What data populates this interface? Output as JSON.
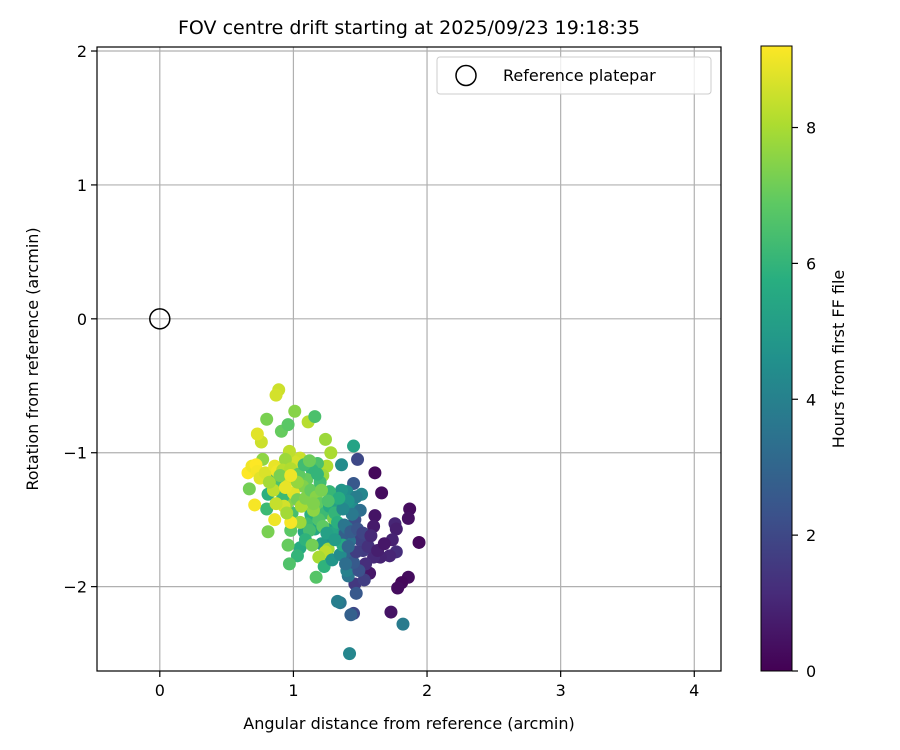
{
  "chart_data": {
    "type": "scatter",
    "title": "FOV centre drift starting at 2025/09/23 19:18:35",
    "xlabel": "Angular distance from reference (arcmin)",
    "ylabel": "Rotation from reference (arcmin)",
    "xlim": [
      -0.47,
      4.2
    ],
    "ylim": [
      -2.63,
      2.03
    ],
    "xticks": [
      0,
      1,
      2,
      3,
      4
    ],
    "yticks": [
      -2,
      -1,
      0,
      1,
      2
    ],
    "xtick_labels": [
      "0",
      "1",
      "2",
      "3",
      "4"
    ],
    "ytick_labels": [
      "−2",
      "−1",
      "0",
      "1",
      "2"
    ],
    "grid": true,
    "legend": {
      "position": "top-right",
      "entries": [
        {
          "label": "Reference platepar",
          "marker": "open-circle"
        }
      ]
    },
    "reference": {
      "x": 0,
      "y": 0
    },
    "colorbar": {
      "label": "Hours from first FF file",
      "range": [
        0,
        9.2
      ],
      "ticks": [
        0,
        2,
        4,
        6,
        8
      ],
      "tick_labels": [
        "0",
        "2",
        "4",
        "6",
        "8"
      ],
      "colormap": "viridis"
    },
    "points": [
      [
        1.94,
        -1.67,
        0.2
      ],
      [
        1.87,
        -1.42,
        0.3
      ],
      [
        1.86,
        -1.49,
        0.4
      ],
      [
        1.86,
        -1.93,
        0.3
      ],
      [
        1.81,
        -1.97,
        0.2
      ],
      [
        1.78,
        -2.01,
        0.3
      ],
      [
        1.73,
        -2.19,
        0.5
      ],
      [
        1.66,
        -1.3,
        0.3
      ],
      [
        1.61,
        -1.15,
        0.2
      ],
      [
        1.61,
        -1.47,
        0.5
      ],
      [
        1.6,
        -1.55,
        0.7
      ],
      [
        1.76,
        -1.53,
        1.0
      ],
      [
        1.77,
        -1.57,
        0.8
      ],
      [
        1.74,
        -1.65,
        0.9
      ],
      [
        1.77,
        -1.74,
        1.2
      ],
      [
        1.72,
        -1.77,
        1.0
      ],
      [
        1.65,
        -1.78,
        0.9
      ],
      [
        1.6,
        -1.78,
        1.1
      ],
      [
        1.57,
        -1.9,
        0.6
      ],
      [
        1.54,
        -1.83,
        1.2
      ],
      [
        1.55,
        -1.67,
        1.4
      ],
      [
        1.52,
        -1.73,
        1.6
      ],
      [
        1.5,
        -1.65,
        1.8
      ],
      [
        1.46,
        -1.5,
        2.2
      ],
      [
        1.45,
        -1.23,
        2.5
      ],
      [
        1.48,
        -1.05,
        2.0
      ],
      [
        1.46,
        -1.98,
        1.5
      ],
      [
        1.47,
        -2.05,
        2.5
      ],
      [
        1.45,
        -2.2,
        2.0
      ],
      [
        1.43,
        -2.21,
        2.8
      ],
      [
        1.82,
        -2.28,
        3.8
      ],
      [
        1.42,
        -2.5,
        4.2
      ],
      [
        1.35,
        -2.12,
        3.6
      ],
      [
        1.33,
        -2.11,
        3.9
      ],
      [
        1.41,
        -1.92,
        3.6
      ],
      [
        1.4,
        -1.88,
        4.0
      ],
      [
        1.43,
        -1.75,
        3.0
      ],
      [
        1.42,
        -1.66,
        3.4
      ],
      [
        1.37,
        -1.61,
        2.8
      ],
      [
        1.4,
        -1.56,
        3.5
      ],
      [
        1.44,
        -1.4,
        4.5
      ],
      [
        1.4,
        -1.29,
        4.5
      ],
      [
        1.36,
        -1.09,
        4.4
      ],
      [
        1.45,
        -0.95,
        5.3
      ],
      [
        1.51,
        -1.31,
        4.2
      ],
      [
        1.5,
        -1.43,
        3.3
      ],
      [
        1.3,
        -1.56,
        5.0
      ],
      [
        1.27,
        -1.64,
        4.5
      ],
      [
        1.24,
        -1.76,
        5.5
      ],
      [
        1.21,
        -1.68,
        5.0
      ],
      [
        1.16,
        -1.57,
        5.5
      ],
      [
        1.13,
        -1.46,
        5.8
      ],
      [
        1.1,
        -1.53,
        6.2
      ],
      [
        1.08,
        -1.59,
        5.3
      ],
      [
        1.05,
        -1.71,
        5.6
      ],
      [
        1.03,
        -1.77,
        6.0
      ],
      [
        0.97,
        -1.83,
        6.6
      ],
      [
        0.96,
        -1.69,
        7.0
      ],
      [
        0.98,
        -1.58,
        6.8
      ],
      [
        0.99,
        -1.45,
        6.4
      ],
      [
        0.95,
        -1.38,
        7.5
      ],
      [
        0.92,
        -1.33,
        6.2
      ],
      [
        0.89,
        -1.24,
        6.5
      ],
      [
        0.83,
        -1.18,
        5.8
      ],
      [
        0.81,
        -1.31,
        5.8
      ],
      [
        0.8,
        -1.42,
        6.2
      ],
      [
        0.81,
        -1.59,
        7.3
      ],
      [
        0.77,
        -1.05,
        7.6
      ],
      [
        0.8,
        -0.75,
        7.3
      ],
      [
        0.76,
        -0.92,
        8.5
      ],
      [
        0.73,
        -0.86,
        8.8
      ],
      [
        0.67,
        -1.27,
        7.2
      ],
      [
        0.71,
        -1.39,
        9.1
      ],
      [
        0.66,
        -1.15,
        9.2
      ],
      [
        0.69,
        -1.1,
        9.0
      ],
      [
        0.72,
        -1.09,
        9.2
      ],
      [
        0.73,
        -1.14,
        9.1
      ],
      [
        0.75,
        -1.19,
        8.8
      ],
      [
        0.79,
        -1.15,
        8.7
      ],
      [
        0.86,
        -1.1,
        8.9
      ],
      [
        0.88,
        -1.14,
        9.0
      ],
      [
        0.89,
        -0.53,
        8.5
      ],
      [
        0.87,
        -0.57,
        8.6
      ],
      [
        0.91,
        -0.84,
        7.0
      ],
      [
        0.96,
        -0.79,
        6.8
      ],
      [
        1.01,
        -0.69,
        7.5
      ],
      [
        1.11,
        -0.77,
        8.2
      ],
      [
        1.16,
        -0.73,
        6.5
      ],
      [
        1.24,
        -0.9,
        7.8
      ],
      [
        1.28,
        -1.0,
        8.0
      ],
      [
        1.25,
        -1.1,
        8.1
      ],
      [
        1.22,
        -1.17,
        7.8
      ],
      [
        1.18,
        -1.08,
        6.5
      ],
      [
        1.14,
        -1.13,
        6.0
      ],
      [
        1.1,
        -1.2,
        7.0
      ],
      [
        1.07,
        -1.25,
        7.4
      ],
      [
        1.05,
        -1.04,
        8.5
      ],
      [
        1.01,
        -1.07,
        8.6
      ],
      [
        0.97,
        -0.99,
        8.3
      ],
      [
        0.94,
        -1.05,
        7.8
      ],
      [
        0.92,
        -1.13,
        8.2
      ],
      [
        0.97,
        -1.2,
        8.7
      ],
      [
        1.0,
        -1.3,
        8.8
      ],
      [
        1.03,
        -1.35,
        7.2
      ],
      [
        1.06,
        -1.4,
        8.0
      ],
      [
        1.09,
        -1.34,
        7.4
      ],
      [
        1.13,
        -1.28,
        7.0
      ],
      [
        1.17,
        -1.33,
        7.5
      ],
      [
        1.2,
        -1.38,
        6.9
      ],
      [
        1.24,
        -1.45,
        6.2
      ],
      [
        1.27,
        -1.4,
        5.6
      ],
      [
        1.3,
        -1.49,
        7.4
      ],
      [
        1.33,
        -1.37,
        5.2
      ],
      [
        1.36,
        -1.28,
        4.8
      ],
      [
        1.31,
        -1.45,
        6.0
      ],
      [
        1.29,
        -1.6,
        5.4
      ],
      [
        1.26,
        -1.72,
        7.9
      ],
      [
        1.24,
        -1.74,
        8.3
      ],
      [
        1.19,
        -1.78,
        8.0
      ],
      [
        1.17,
        -1.93,
        6.7
      ],
      [
        1.23,
        -1.85,
        5.9
      ],
      [
        1.29,
        -1.8,
        4.8
      ],
      [
        1.35,
        -1.76,
        4.4
      ],
      [
        1.37,
        -1.69,
        5.5
      ],
      [
        1.33,
        -1.52,
        5.8
      ],
      [
        1.19,
        -1.5,
        6.6
      ],
      [
        1.15,
        -1.43,
        7.6
      ],
      [
        1.12,
        -1.58,
        6.4
      ],
      [
        1.09,
        -1.65,
        5.9
      ],
      [
        1.14,
        -1.69,
        7.2
      ],
      [
        1.05,
        -1.52,
        7.8
      ],
      [
        0.98,
        -1.52,
        9.1
      ],
      [
        0.86,
        -1.5,
        9.0
      ],
      [
        0.93,
        -1.4,
        8.6
      ],
      [
        0.95,
        -1.45,
        7.9
      ],
      [
        0.85,
        -1.28,
        8.3
      ],
      [
        0.82,
        -1.22,
        7.9
      ],
      [
        0.9,
        -1.17,
        7.3
      ],
      [
        0.98,
        -1.12,
        8.1
      ],
      [
        1.04,
        -1.16,
        6.9
      ],
      [
        1.08,
        -1.09,
        6.3
      ],
      [
        1.12,
        -1.06,
        7.1
      ],
      [
        1.2,
        -1.22,
        6.3
      ],
      [
        1.27,
        -1.29,
        6.1
      ],
      [
        1.15,
        -1.38,
        7.4
      ],
      [
        1.22,
        -1.55,
        6.9
      ],
      [
        1.25,
        -1.6,
        5.2
      ],
      [
        1.31,
        -1.65,
        5.0
      ],
      [
        1.38,
        -1.54,
        3.6
      ],
      [
        1.43,
        -1.59,
        2.7
      ],
      [
        1.48,
        -1.57,
        2.4
      ],
      [
        1.52,
        -1.6,
        1.9
      ],
      [
        1.56,
        -1.7,
        1.3
      ],
      [
        1.58,
        -1.62,
        1.1
      ],
      [
        1.63,
        -1.73,
        0.8
      ],
      [
        1.68,
        -1.68,
        0.6
      ],
      [
        1.53,
        -1.95,
        1.7
      ],
      [
        1.49,
        -1.88,
        2.3
      ],
      [
        1.45,
        -1.82,
        2.6
      ],
      [
        1.47,
        -1.74,
        1.7
      ],
      [
        1.41,
        -1.7,
        3.1
      ],
      [
        1.39,
        -1.83,
        3.3
      ],
      [
        1.47,
        -1.33,
        3.9
      ],
      [
        1.44,
        -1.46,
        3.7
      ],
      [
        1.41,
        -1.36,
        4.7
      ],
      [
        1.37,
        -1.42,
        4.3
      ],
      [
        1.34,
        -1.34,
        5.7
      ],
      [
        1.26,
        -1.36,
        6.6
      ],
      [
        1.21,
        -1.28,
        7.3
      ],
      [
        1.18,
        -1.16,
        6.0
      ],
      [
        1.03,
        -1.22,
        7.7
      ],
      [
        0.87,
        -1.38,
        8.4
      ],
      [
        0.94,
        -1.26,
        8.9
      ],
      [
        0.98,
        -1.17,
        9.0
      ]
    ]
  }
}
